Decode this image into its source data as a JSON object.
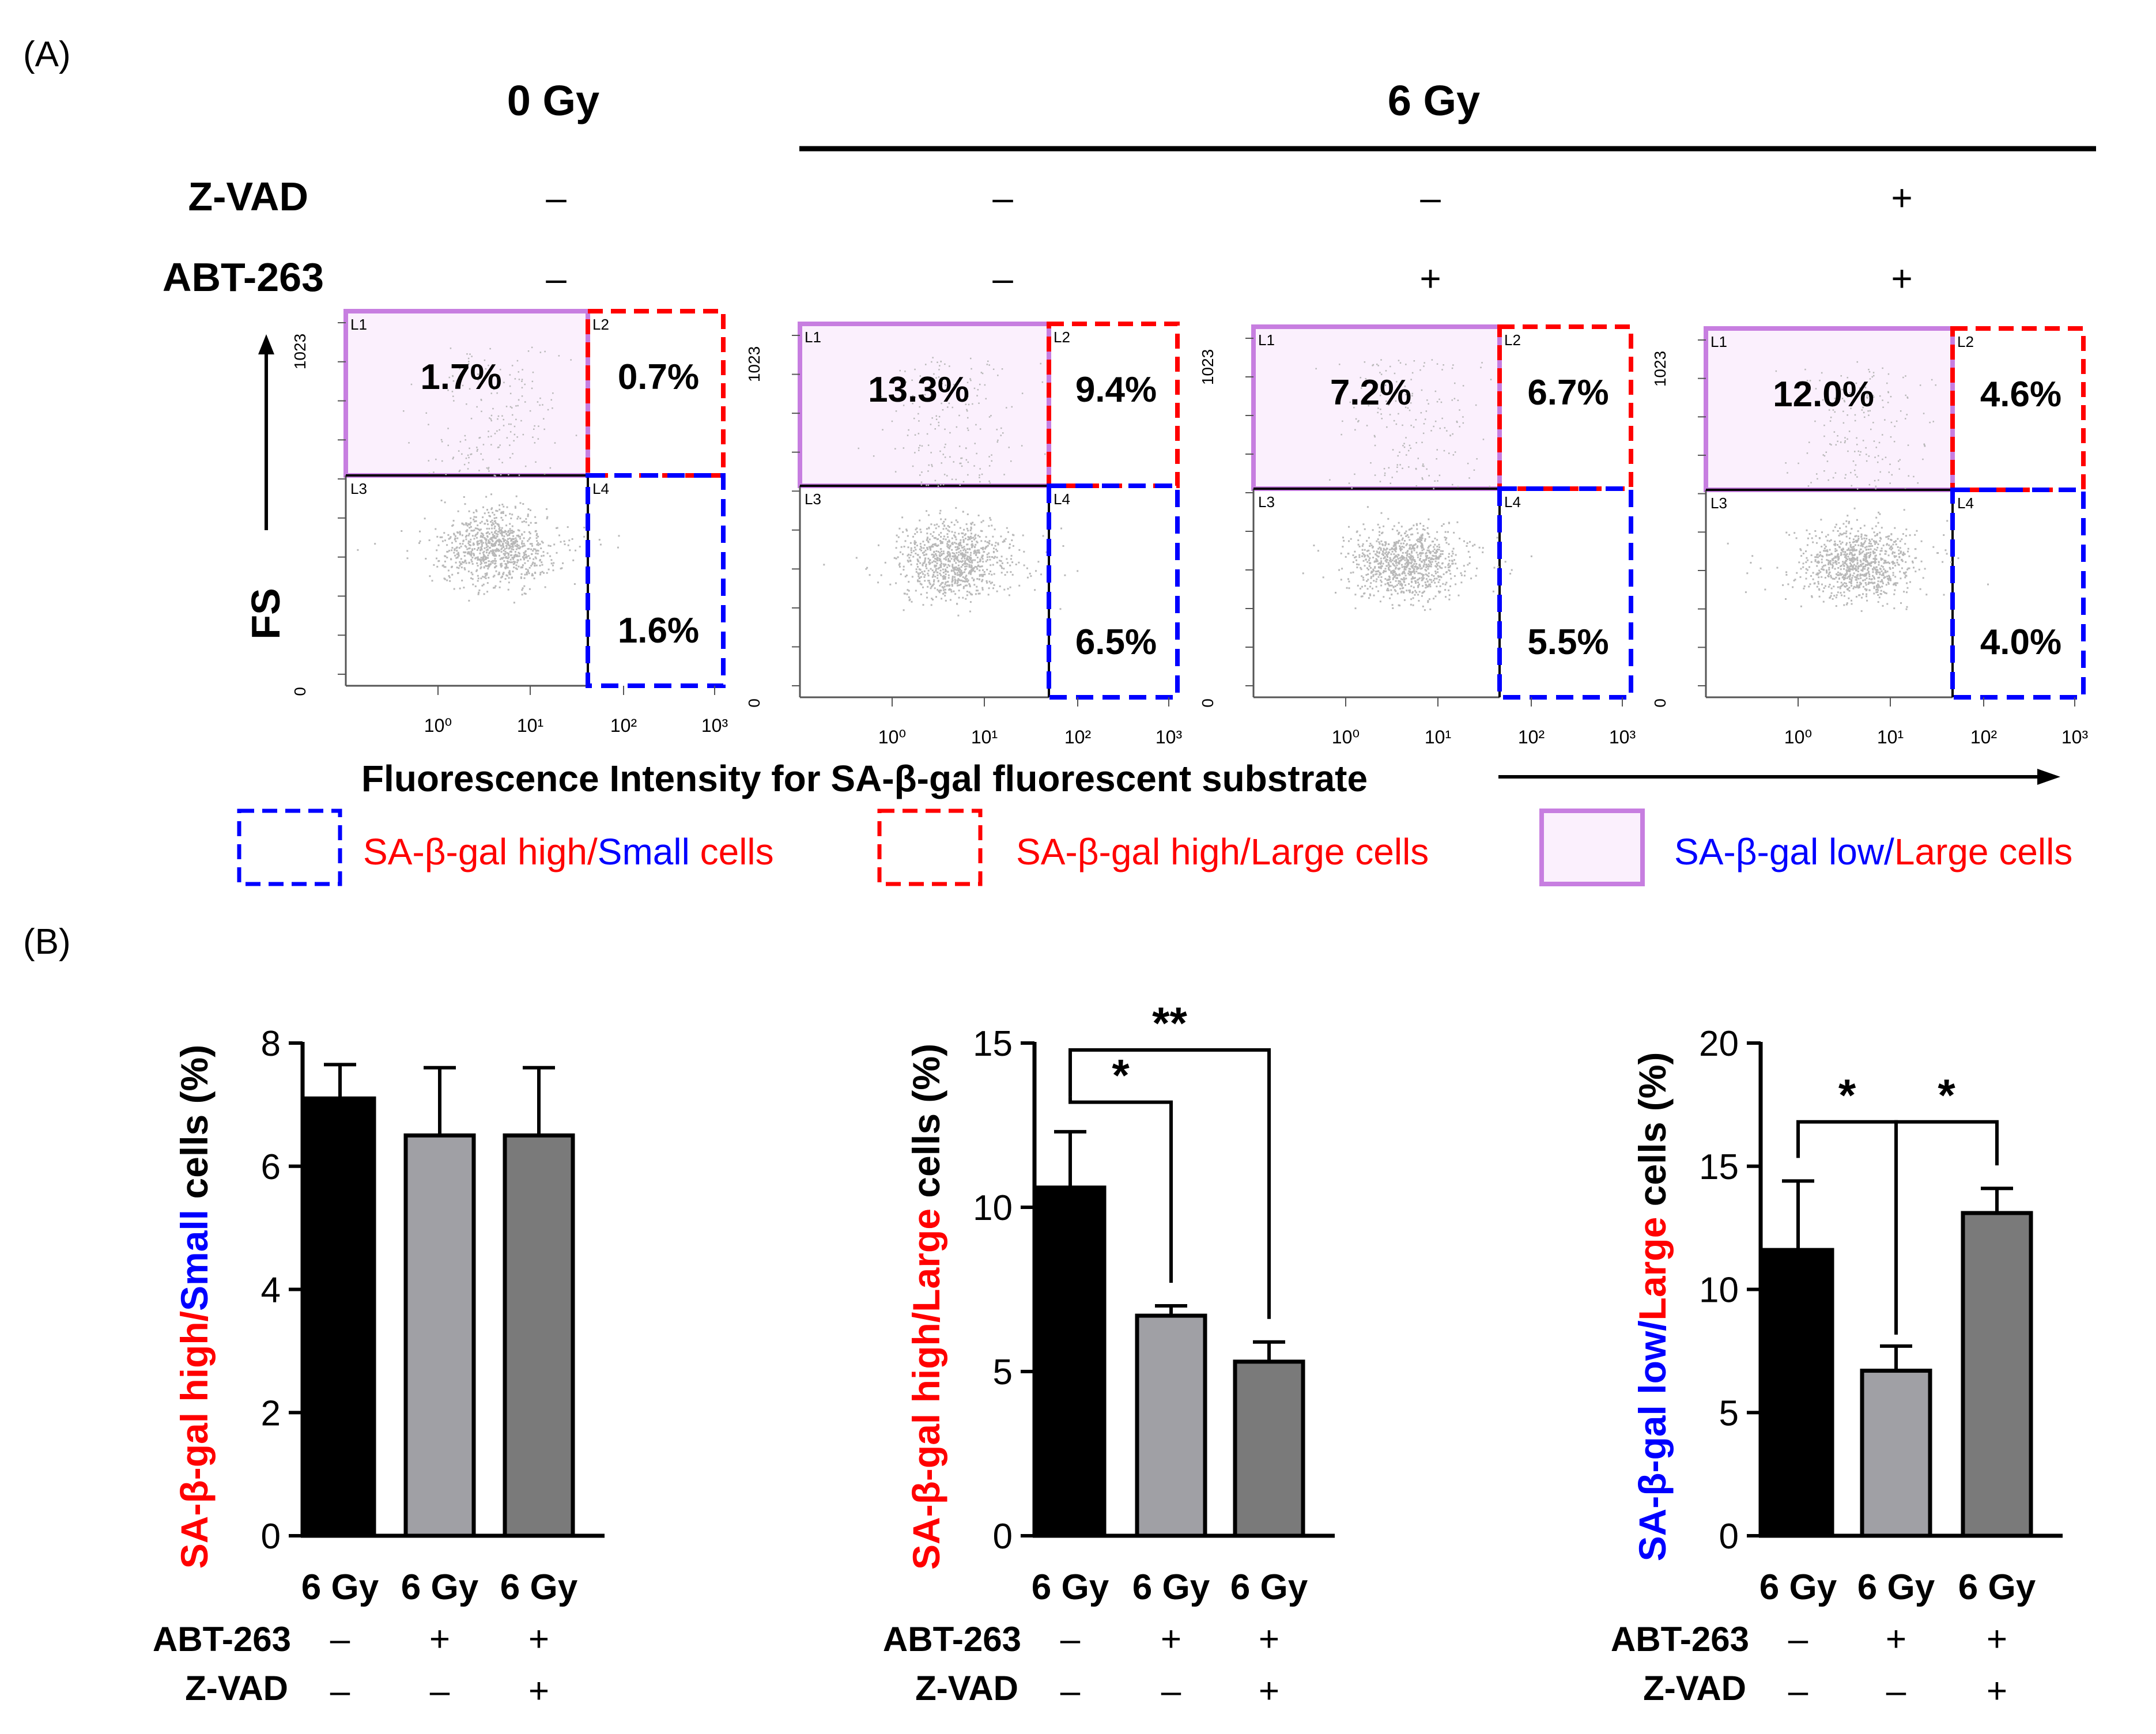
{
  "panel_labels": {
    "a": "(A)",
    "b": "(B)"
  },
  "header": {
    "gy0": "0 Gy",
    "gy6": "6 Gy",
    "zvad_label": "Z-VAD",
    "abt_label": "ABT-263",
    "zvad_signs": [
      "–",
      "–",
      "–",
      "+"
    ],
    "abt_signs": [
      "–",
      "–",
      "+",
      "+"
    ]
  },
  "flow": {
    "ylabel": "FS",
    "xlabel": "Fluorescence Intensity for SA-β-gal fluorescent substrate",
    "ytick_top": "1023",
    "ytick_bottom": "0",
    "xticks": [
      "10⁰",
      "10¹",
      "10²",
      "10³"
    ],
    "gate_labels": [
      "L1",
      "L2",
      "L3",
      "L4"
    ],
    "plots": [
      {
        "pcts": [
          "1.7%",
          "0.7%",
          "1.6%"
        ]
      },
      {
        "pcts": [
          "13.3%",
          "9.4%",
          "6.5%"
        ]
      },
      {
        "pcts": [
          "7.2%",
          "6.7%",
          "5.5%"
        ]
      },
      {
        "pcts": [
          "12.0%",
          "4.6%",
          "4.0%"
        ]
      }
    ]
  },
  "legend": {
    "item1": {
      "a": "SA-β-gal high/",
      "b": "Small",
      "c": " cells"
    },
    "item2": {
      "a": "SA-β-gal high/Large cells"
    },
    "item3": {
      "a": "SA-β-gal low/",
      "b": "Large cells"
    }
  },
  "colors": {
    "black_bar": "#000000",
    "light_gray_bar": "#a0a0a5",
    "dark_gray_bar": "#7a7a7a",
    "red": "#ff0000",
    "blue": "#0000ff",
    "purple": "#c77ee0",
    "purple_fill": "#fbf0fd"
  },
  "chart_data": [
    {
      "type": "bar",
      "ylabel_parts": [
        {
          "t": "SA-β-gal high/",
          "c": "red"
        },
        {
          "t": "Small",
          "c": "blue"
        },
        {
          "t": " cells (%)",
          "c": "black"
        }
      ],
      "categories": [
        "6 Gy",
        "6 Gy",
        "6 Gy"
      ],
      "values": [
        7.1,
        6.5,
        6.5
      ],
      "errors": [
        0.55,
        1.1,
        1.1
      ],
      "ylim": [
        0,
        8
      ],
      "yticks": [
        0,
        2,
        4,
        6,
        8
      ],
      "abt263": [
        "–",
        "+",
        "+"
      ],
      "zvad": [
        "–",
        "–",
        "+"
      ],
      "row_labels": [
        "ABT-263",
        "Z-VAD"
      ],
      "significance": []
    },
    {
      "type": "bar",
      "ylabel_parts": [
        {
          "t": "SA-β-gal high/",
          "c": "red"
        },
        {
          "t": "Large",
          "c": "red"
        },
        {
          "t": " cells (%)",
          "c": "black"
        }
      ],
      "categories": [
        "6 Gy",
        "6 Gy",
        "6 Gy"
      ],
      "values": [
        10.6,
        6.7,
        5.3
      ],
      "errors": [
        1.7,
        0.3,
        0.6
      ],
      "ylim": [
        0,
        15
      ],
      "yticks": [
        0,
        5,
        10,
        15
      ],
      "abt263": [
        "–",
        "+",
        "+"
      ],
      "zvad": [
        "–",
        "–",
        "+"
      ],
      "row_labels": [
        "ABT-263",
        "Z-VAD"
      ],
      "significance": [
        {
          "from": 0,
          "to": 1,
          "label": "*"
        },
        {
          "from": 0,
          "to": 2,
          "label": "**"
        }
      ]
    },
    {
      "type": "bar",
      "ylabel_parts": [
        {
          "t": "SA-β-gal low/",
          "c": "blue"
        },
        {
          "t": "Large",
          "c": "red"
        },
        {
          "t": " cells (%)",
          "c": "black"
        }
      ],
      "categories": [
        "6 Gy",
        "6 Gy",
        "6 Gy"
      ],
      "values": [
        11.6,
        6.7,
        13.1
      ],
      "errors": [
        2.8,
        1.0,
        1.0
      ],
      "ylim": [
        0,
        20
      ],
      "yticks": [
        0,
        5,
        10,
        15,
        20
      ],
      "abt263": [
        "–",
        "+",
        "+"
      ],
      "zvad": [
        "–",
        "–",
        "+"
      ],
      "row_labels": [
        "ABT-263",
        "Z-VAD"
      ],
      "significance": [
        {
          "from": 0,
          "to": 1,
          "label": "*"
        },
        {
          "from": 1,
          "to": 2,
          "label": "*"
        }
      ]
    }
  ]
}
